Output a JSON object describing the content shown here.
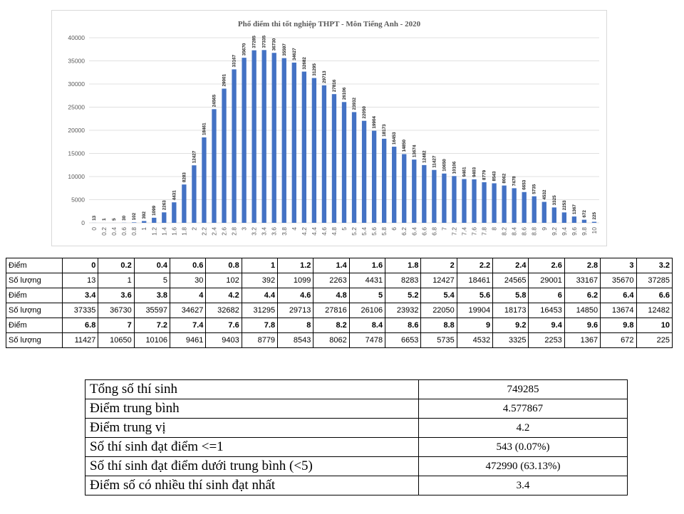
{
  "chart_data": {
    "type": "bar",
    "title": "Phổ điểm thi tốt nghiệp THPT - Môn Tiếng Anh - 2020",
    "categories": [
      "0",
      "0.2",
      "0.4",
      "0.6",
      "0.8",
      "1",
      "1.2",
      "1.4",
      "1.6",
      "1.8",
      "2",
      "2.2",
      "2.4",
      "2.6",
      "2.8",
      "3",
      "3.2",
      "3.4",
      "3.6",
      "3.8",
      "4",
      "4.2",
      "4.4",
      "4.6",
      "4.8",
      "5",
      "5.2",
      "5.4",
      "5.6",
      "5.8",
      "6",
      "6.2",
      "6.4",
      "6.6",
      "6.8",
      "7",
      "7.2",
      "7.4",
      "7.6",
      "7.8",
      "8",
      "8.2",
      "8.4",
      "8.6",
      "8.8",
      "9",
      "9.2",
      "9.4",
      "9.6",
      "9.8",
      "10"
    ],
    "values": [
      13,
      1,
      5,
      30,
      102,
      392,
      1099,
      2263,
      4431,
      8283,
      12427,
      18461,
      24565,
      29001,
      33167,
      35670,
      37285,
      37335,
      36730,
      35597,
      34627,
      32682,
      31295,
      29713,
      27816,
      26106,
      23932,
      22050,
      19904,
      18173,
      16453,
      14850,
      13674,
      12482,
      11427,
      10650,
      10106,
      9461,
      9403,
      8779,
      8543,
      8062,
      7478,
      6653,
      5735,
      4532,
      3325,
      2253,
      1367,
      672,
      225
    ],
    "yticks": [
      0,
      5000,
      10000,
      15000,
      20000,
      25000,
      30000,
      35000,
      40000
    ],
    "ylim": [
      0,
      40000
    ],
    "grid": true,
    "legend": "none",
    "bar_color": "#4472c4"
  },
  "score_table": {
    "label_score": "Điểm",
    "label_count": "Số lượng",
    "rows": [
      {
        "scores": [
          "0",
          "0.2",
          "0.4",
          "0.6",
          "0.8",
          "1",
          "1.2",
          "1.4",
          "1.6",
          "1.8",
          "2",
          "2.2",
          "2.4",
          "2.6",
          "2.8",
          "3",
          "3.2"
        ],
        "counts": [
          "13",
          "1",
          "5",
          "30",
          "102",
          "392",
          "1099",
          "2263",
          "4431",
          "8283",
          "12427",
          "18461",
          "24565",
          "29001",
          "33167",
          "35670",
          "37285"
        ]
      },
      {
        "scores": [
          "3.4",
          "3.6",
          "3.8",
          "4",
          "4.2",
          "4.4",
          "4.6",
          "4.8",
          "5",
          "5.2",
          "5.4",
          "5.6",
          "5.8",
          "6",
          "6.2",
          "6.4",
          "6.6"
        ],
        "counts": [
          "37335",
          "36730",
          "35597",
          "34627",
          "32682",
          "31295",
          "29713",
          "27816",
          "26106",
          "23932",
          "22050",
          "19904",
          "18173",
          "16453",
          "14850",
          "13674",
          "12482"
        ]
      },
      {
        "scores": [
          "6.8",
          "7",
          "7.2",
          "7.4",
          "7.6",
          "7.8",
          "8",
          "8.2",
          "8.4",
          "8.6",
          "8.8",
          "9",
          "9.2",
          "9.4",
          "9.6",
          "9.8",
          "10"
        ],
        "counts": [
          "11427",
          "10650",
          "10106",
          "9461",
          "9403",
          "8779",
          "8543",
          "8062",
          "7478",
          "6653",
          "5735",
          "4532",
          "3325",
          "2253",
          "1367",
          "672",
          "225"
        ]
      }
    ]
  },
  "stats": [
    {
      "label": "Tổng số thí sinh",
      "value": "749285"
    },
    {
      "label": "Điểm trung bình",
      "value": "4.577867"
    },
    {
      "label": "Điểm trung vị",
      "value": "4.2"
    },
    {
      "label": "Số thí sinh đạt điểm <=1",
      "value": "543 (0.07%)"
    },
    {
      "label": "Số thí sinh đạt điểm dưới trung bình (<5)",
      "value": "472990 (63.13%)"
    },
    {
      "label": "Điểm số có nhiều thí sinh đạt nhất",
      "value": "3.4"
    }
  ]
}
